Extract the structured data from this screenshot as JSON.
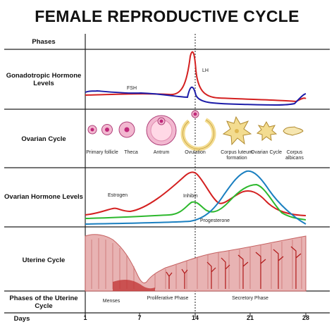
{
  "title": "FEMALE REPRODUCTIVE CYCLE",
  "rows": {
    "phases": "Phases",
    "gonadotropic": "Gonadotropic Hormone Levels",
    "ovarian_cycle": "Ovarian Cycle",
    "ovarian_hormone": "Ovarian Hormone Levels",
    "uterine": "Uterine Cycle",
    "uterine_phases": "Phases of the Uterine Cycle",
    "days": "Days"
  },
  "hormones": {
    "lh": "LH",
    "fsh": "FSH",
    "estrogen": "Estrogen",
    "inhibin": "Inhibin",
    "progesterone": "Progesterone"
  },
  "ovarian_stages": [
    {
      "label": "Primary follicle"
    },
    {
      "label": "Theca"
    },
    {
      "label": "Antrum"
    },
    {
      "label": "Ovulation"
    },
    {
      "label": "Corpus luteum formation"
    },
    {
      "label": "Ovarian Cycle"
    },
    {
      "label": "Corpus albicans"
    }
  ],
  "uterine_phases": {
    "menses": "Menses",
    "proliferative": "Proliferative Phase",
    "secretory": "Secretory Phase"
  },
  "days": [
    "1",
    "7",
    "14",
    "21",
    "28"
  ],
  "colors": {
    "red": "#d42020",
    "blue": "#1c1ca8",
    "green": "#2db82d",
    "teal": "#1a7fc0",
    "tissue": "#e8b3b3",
    "tissue_dark": "#c56060",
    "follicle_pink": "#f2b8d0",
    "follicle_core": "#c0287a",
    "luteum": "#f3dc90"
  }
}
